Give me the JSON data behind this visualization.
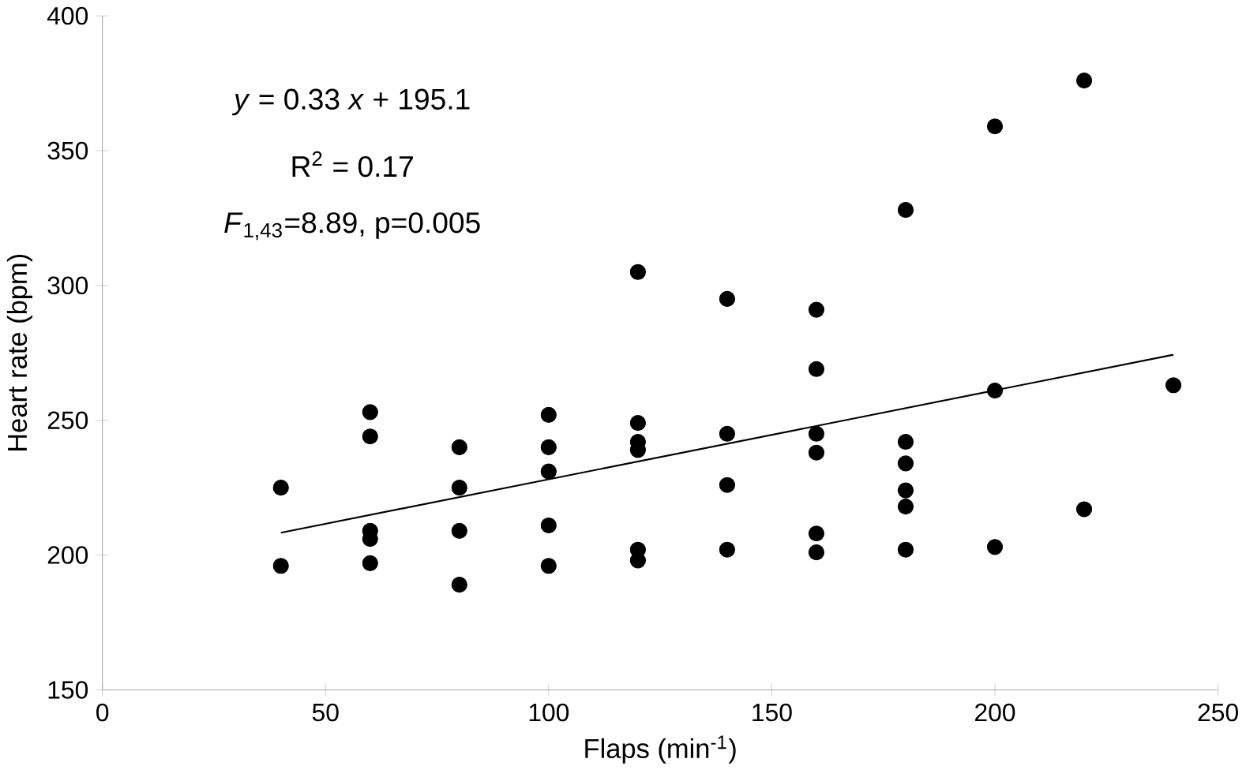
{
  "chart_data": {
    "type": "scatter",
    "xlabel": "Flaps (min$^{-1}$)",
    "ylabel": "Heart rate (bpm)",
    "annotations": [
      "*y* = 0.33 *x* + 195.1",
      "R$^{2}$ = 0.17",
      "*F*$_{1,43}$=8.89, p=0.005"
    ],
    "xlim": [
      0,
      250
    ],
    "ylim": [
      150,
      400
    ],
    "xticks": [
      0,
      50,
      100,
      150,
      200,
      250
    ],
    "yticks": [
      150,
      200,
      250,
      300,
      350,
      400
    ],
    "grid": false,
    "series": [
      {
        "color": "#000000",
        "marker": "circle",
        "x": [
          40,
          40,
          60,
          60,
          60,
          60,
          60,
          80,
          80,
          80,
          80,
          100,
          100,
          100,
          100,
          100,
          120,
          120,
          120,
          120,
          120,
          120,
          140,
          140,
          140,
          140,
          160,
          160,
          160,
          160,
          160,
          160,
          180,
          180,
          180,
          180,
          180,
          180,
          200,
          200,
          200,
          220,
          220,
          240
        ],
        "values": [
          225,
          196,
          253,
          244,
          209,
          206,
          197,
          240,
          225,
          209,
          189,
          252,
          240,
          231,
          211,
          196,
          305,
          249,
          242,
          239,
          202,
          198,
          295,
          245,
          226,
          202,
          291,
          269,
          245,
          238,
          208,
          201,
          328,
          242,
          234,
          224,
          218,
          202,
          359,
          261,
          203,
          376,
          217,
          263
        ]
      },
      {
        "type": "line",
        "color": "#000000",
        "marker": "none",
        "x": [
          40,
          240
        ],
        "values": [
          208.3,
          274.3
        ]
      }
    ]
  }
}
